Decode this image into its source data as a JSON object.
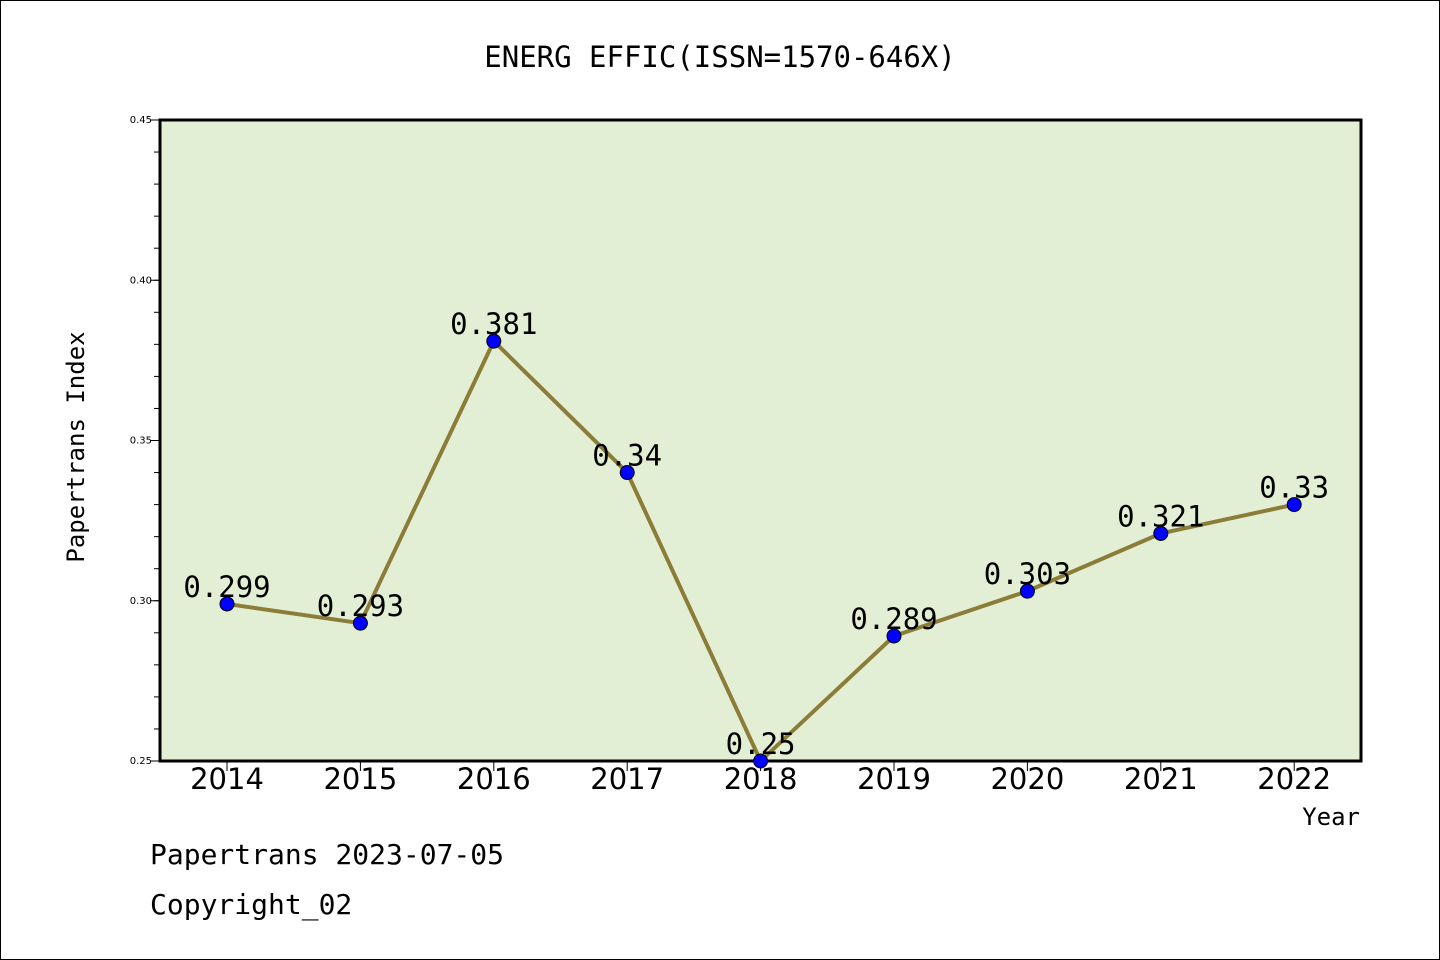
{
  "chart_data": {
    "type": "line",
    "title": "ENERG EFFIC(ISSN=1570-646X)",
    "xlabel": "Year",
    "ylabel": "Papertrans Index",
    "categories": [
      "2014",
      "2015",
      "2016",
      "2017",
      "2018",
      "2019",
      "2020",
      "2021",
      "2022"
    ],
    "series": [
      {
        "values": [
          0.299,
          0.293,
          0.381,
          0.34,
          0.25,
          0.289,
          0.303,
          0.321,
          0.33
        ],
        "data_labels": [
          "0.299",
          "0.293",
          "0.381",
          "0.34",
          "0.25",
          "0.289",
          "0.303",
          "0.321",
          "0.33"
        ]
      }
    ],
    "ylim": [
      0.25,
      0.45
    ],
    "yticks": [
      "0.25",
      "0.30",
      "0.35",
      "0.40",
      "0.45"
    ],
    "grid": false,
    "colors": {
      "plot_background": "#e2efd5",
      "line": "#8b7d38",
      "marker": "#0000ff"
    }
  },
  "footer": {
    "date_line": "Papertrans 2023-07-05",
    "copyright": "Copyright_02"
  }
}
